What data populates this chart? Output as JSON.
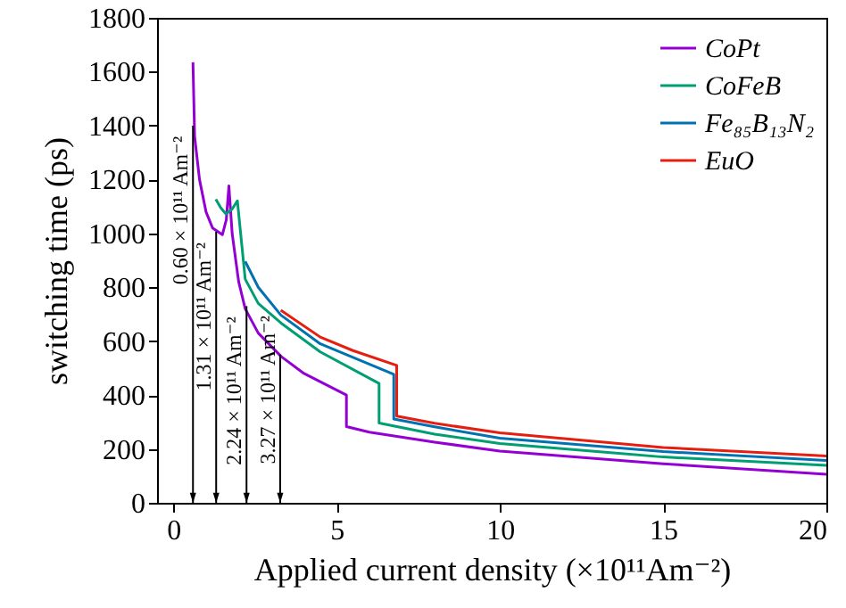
{
  "chart_data": {
    "type": "line",
    "xlabel": "Applied current density (×10¹¹Am⁻²)",
    "ylabel": "switching time (ps)",
    "xlim": [
      -0.5,
      20
    ],
    "xticks": [
      0,
      5,
      10,
      15,
      20
    ],
    "ylim": [
      0,
      1800
    ],
    "yticks": [
      0,
      200,
      400,
      600,
      800,
      1000,
      1200,
      1400,
      1600,
      1800
    ],
    "grid": false,
    "legend": "top right",
    "line_style": "solid",
    "series": [
      {
        "name": "CoPt",
        "color": "#9400d3",
        "x": [
          0.6,
          0.65,
          0.8,
          1.0,
          1.2,
          1.5,
          1.62,
          1.7,
          1.8,
          2.0,
          2.2,
          2.6,
          3.3,
          4.0,
          5.3,
          5.3,
          6.0,
          8.0,
          10.0,
          15.0,
          20.0
        ],
        "values": [
          1635,
          1360,
          1200,
          1080,
          1020,
          995,
          1050,
          1176,
          1000,
          820,
          720,
          630,
          543,
          480,
          400,
          283,
          262,
          225,
          192,
          145,
          106
        ]
      },
      {
        "name": "CoFeB",
        "color": "#009e73",
        "x": [
          1.3,
          1.45,
          1.61,
          1.8,
          1.96,
          2.2,
          2.6,
          3.3,
          4.5,
          6.3,
          6.3,
          8.0,
          10.0,
          15.0,
          20.0
        ],
        "values": [
          1127,
          1095,
          1072,
          1090,
          1121,
          830,
          740,
          667,
          560,
          443,
          296,
          255,
          220,
          170,
          139
        ]
      },
      {
        "name": "Fe₈₅B₁₃N₂",
        "color": "#0072b2",
        "x": [
          2.2,
          2.6,
          3.29,
          4.5,
          6.75,
          6.75,
          8.0,
          10.0,
          15.0,
          20.0
        ],
        "values": [
          896,
          800,
          697,
          590,
          477,
          311,
          282,
          240,
          190,
          157
        ]
      },
      {
        "name": "EuO",
        "color": "#e51e10",
        "x": [
          3.29,
          4.5,
          5.5,
          6.84,
          6.84,
          8.0,
          10.0,
          15.0,
          20.0
        ],
        "values": [
          715,
          615,
          565,
          510,
          322,
          295,
          260,
          205,
          174
        ]
      }
    ],
    "annotations": [
      {
        "text": "0.60 × 10¹¹ Am⁻²",
        "x": 0.6,
        "y": 1400
      },
      {
        "text": "1.31 × 10¹¹ Am⁻²",
        "x": 1.31,
        "y": 1006
      },
      {
        "text": "2.24 × 10¹¹ Am⁻²",
        "x": 2.24,
        "y": 730
      },
      {
        "text": "3.27 × 10¹¹ Am⁻²",
        "x": 3.27,
        "y": 550
      }
    ]
  }
}
